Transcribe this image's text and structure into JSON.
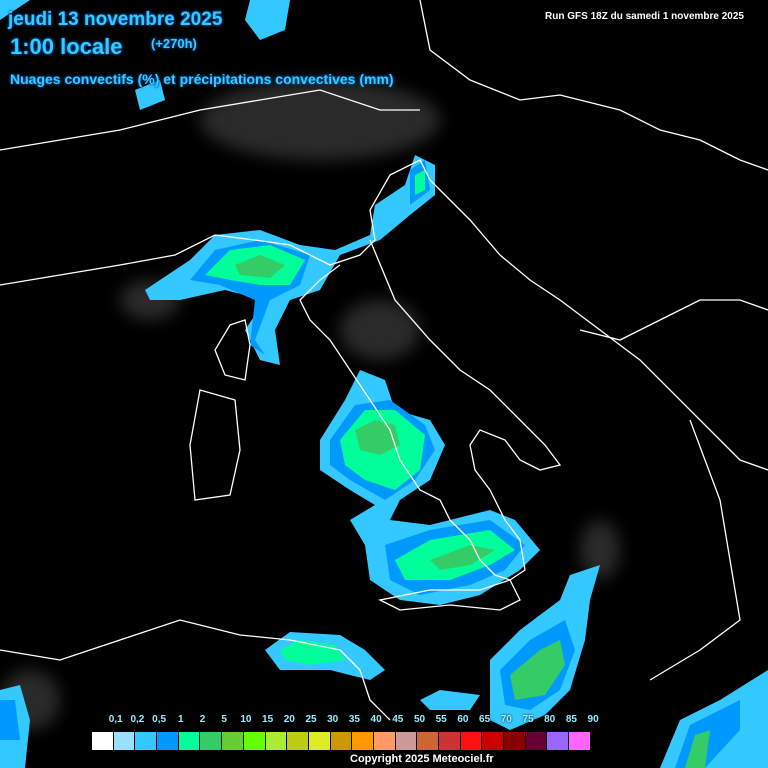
{
  "header": {
    "date": "jeudi 13 novembre 2025",
    "time": "1:00 locale",
    "lead": "(+270h)",
    "subtitle": "Nuages convectifs (%) et précipitations convectives (mm)",
    "run": "Run GFS 18Z du samedi 1 novembre 2025"
  },
  "legend": {
    "labels": [
      "0,1",
      "0,2",
      "0,5",
      "1",
      "2",
      "5",
      "10",
      "15",
      "20",
      "25",
      "30",
      "35",
      "40",
      "45",
      "50",
      "55",
      "60",
      "65",
      "70",
      "75",
      "80",
      "85",
      "90"
    ],
    "colors": [
      "#ffffff",
      "#99e0ff",
      "#33c8ff",
      "#0099ff",
      "#00ff99",
      "#33cc66",
      "#66cc33",
      "#66ff00",
      "#aaee33",
      "#bbcc11",
      "#dded22",
      "#cc9900",
      "#ff9900",
      "#ff9966",
      "#cc9999",
      "#cc6633",
      "#cc3333",
      "#ff1111",
      "#cc0000",
      "#880000",
      "#660033",
      "#9966ff",
      "#ff66ff"
    ]
  },
  "colors": {
    "title": "#33ccff",
    "coastline": "#ffffff",
    "background": "#000000"
  },
  "footer": {
    "copyright": "Copyright 2025 Meteociel.fr"
  }
}
